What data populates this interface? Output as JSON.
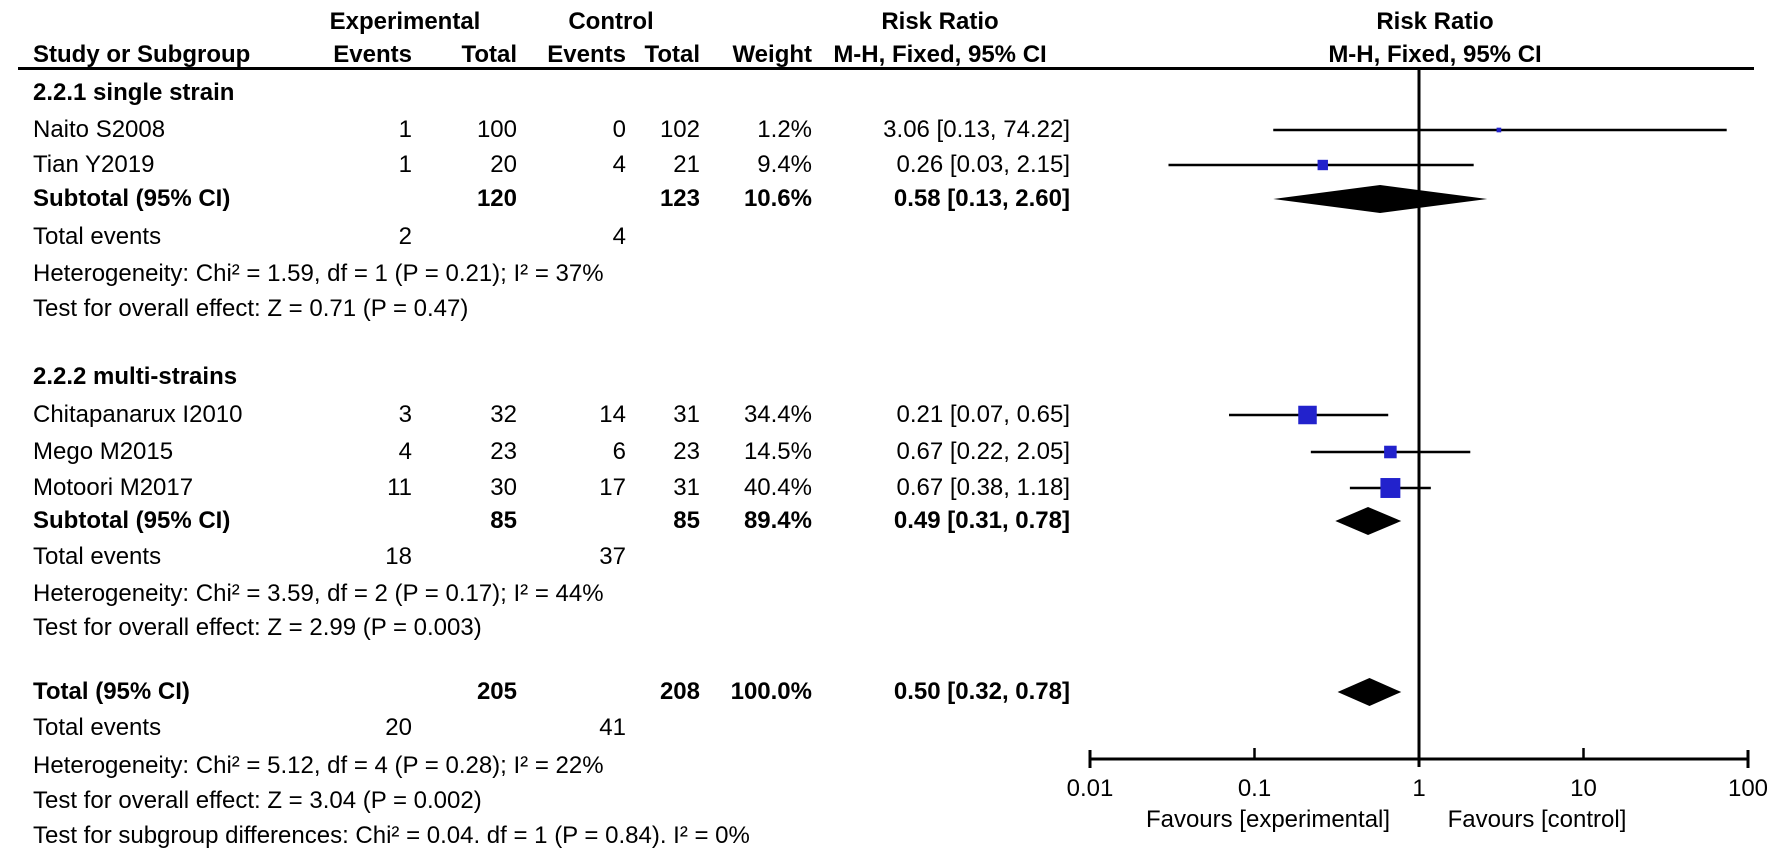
{
  "columns": {
    "study": "Study or Subgroup",
    "exp_group": "Experimental",
    "ctl_group": "Control",
    "events": "Events",
    "total": "Total",
    "weight": "Weight",
    "effect": "Risk Ratio",
    "method": "M-H, Fixed, 95% CI"
  },
  "rows": [
    {
      "kind": "heading",
      "text": "2.2.1 single strain"
    },
    {
      "kind": "study",
      "study": "Naito S2008",
      "exp_events": "1",
      "exp_total": "100",
      "ctl_events": "0",
      "ctl_total": "102",
      "weight": "1.2%",
      "estimate": "3.06 [0.13, 74.22]",
      "rr": 3.06,
      "ci_low": 0.13,
      "ci_high": 74.22,
      "weight_pct": 1.2
    },
    {
      "kind": "study",
      "study": "Tian Y2019",
      "exp_events": "1",
      "exp_total": "20",
      "ctl_events": "4",
      "ctl_total": "21",
      "weight": "9.4%",
      "estimate": "0.26 [0.03, 2.15]",
      "rr": 0.26,
      "ci_low": 0.03,
      "ci_high": 2.15,
      "weight_pct": 9.4
    },
    {
      "kind": "subtotal",
      "study": "Subtotal (95% CI)",
      "exp_total": "120",
      "ctl_total": "123",
      "weight": "10.6%",
      "estimate": "0.58 [0.13, 2.60]",
      "rr": 0.58,
      "ci_low": 0.13,
      "ci_high": 2.6
    },
    {
      "kind": "events",
      "study": "Total events",
      "exp_events": "2",
      "ctl_events": "4"
    },
    {
      "kind": "note",
      "text": "Heterogeneity: Chi² = 1.59, df = 1 (P = 0.21); I² = 37%"
    },
    {
      "kind": "note",
      "text": "Test for overall effect: Z = 0.71 (P = 0.47)"
    },
    {
      "kind": "heading",
      "text": "2.2.2 multi-strains"
    },
    {
      "kind": "study",
      "study": "Chitapanarux I2010",
      "exp_events": "3",
      "exp_total": "32",
      "ctl_events": "14",
      "ctl_total": "31",
      "weight": "34.4%",
      "estimate": "0.21 [0.07, 0.65]",
      "rr": 0.21,
      "ci_low": 0.07,
      "ci_high": 0.65,
      "weight_pct": 34.4
    },
    {
      "kind": "study",
      "study": "Mego M2015",
      "exp_events": "4",
      "exp_total": "23",
      "ctl_events": "6",
      "ctl_total": "23",
      "weight": "14.5%",
      "estimate": "0.67 [0.22, 2.05]",
      "rr": 0.67,
      "ci_low": 0.22,
      "ci_high": 2.05,
      "weight_pct": 14.5
    },
    {
      "kind": "study",
      "study": "Motoori M2017",
      "exp_events": "11",
      "exp_total": "30",
      "ctl_events": "17",
      "ctl_total": "31",
      "weight": "40.4%",
      "estimate": "0.67 [0.38, 1.18]",
      "rr": 0.67,
      "ci_low": 0.38,
      "ci_high": 1.18,
      "weight_pct": 40.4
    },
    {
      "kind": "subtotal",
      "study": "Subtotal (95% CI)",
      "exp_total": "85",
      "ctl_total": "85",
      "weight": "89.4%",
      "estimate": "0.49 [0.31, 0.78]",
      "rr": 0.49,
      "ci_low": 0.31,
      "ci_high": 0.78
    },
    {
      "kind": "events",
      "study": "Total events",
      "exp_events": "18",
      "ctl_events": "37"
    },
    {
      "kind": "note",
      "text": "Heterogeneity: Chi² = 3.59, df = 2 (P = 0.17); I² = 44%"
    },
    {
      "kind": "note",
      "text": "Test for overall effect: Z = 2.99 (P = 0.003)"
    },
    {
      "kind": "total",
      "study": "Total (95% CI)",
      "exp_total": "205",
      "ctl_total": "208",
      "weight": "100.0%",
      "estimate": "0.50 [0.32, 0.78]",
      "rr": 0.5,
      "ci_low": 0.32,
      "ci_high": 0.78
    },
    {
      "kind": "events",
      "study": "Total events",
      "exp_events": "20",
      "ctl_events": "41"
    },
    {
      "kind": "note",
      "text": "Heterogeneity: Chi² = 5.12, df = 4 (P = 0.28); I² = 22%"
    },
    {
      "kind": "note",
      "text": "Test for overall effect: Z = 3.04 (P = 0.002)"
    },
    {
      "kind": "note",
      "text": "Test for subgroup differences: Chi² = 0.04. df = 1 (P = 0.84). I² = 0%"
    }
  ],
  "axis": {
    "ticks": [
      {
        "label": "0.01",
        "value": 0.01
      },
      {
        "label": "0.1",
        "value": 0.1
      },
      {
        "label": "1",
        "value": 1
      },
      {
        "label": "10",
        "value": 10
      },
      {
        "label": "100",
        "value": 100
      }
    ],
    "favours_left": "Favours [experimental]",
    "favours_right": "Favours [control]"
  },
  "colors": {
    "marker_blue": "#2222CC",
    "line_black": "#000000"
  },
  "chart_data": {
    "type": "scatter",
    "subtype": "forest-plot",
    "title": "Risk Ratio, M-H, Fixed, 95% CI",
    "x_scale": "log10",
    "x_range": [
      0.01,
      100
    ],
    "x_ticks": [
      0.01,
      0.1,
      1,
      10,
      100
    ],
    "null_line": 1,
    "xlabel_left": "Favours [experimental]",
    "xlabel_right": "Favours [control]",
    "groups": [
      {
        "name": "2.2.1 single strain",
        "studies": [
          {
            "name": "Naito S2008",
            "rr": 3.06,
            "ci": [
              0.13,
              74.22
            ],
            "weight_pct": 1.2
          },
          {
            "name": "Tian Y2019",
            "rr": 0.26,
            "ci": [
              0.03,
              2.15
            ],
            "weight_pct": 9.4
          }
        ],
        "pooled": {
          "rr": 0.58,
          "ci": [
            0.13,
            2.6
          ],
          "weight_pct": 10.6
        },
        "total_events": {
          "experimental": 2,
          "control": 4
        },
        "heterogeneity": "Chi² = 1.59, df = 1 (P = 0.21); I² = 37%",
        "overall_effect": "Z = 0.71 (P = 0.47)"
      },
      {
        "name": "2.2.2 multi-strains",
        "studies": [
          {
            "name": "Chitapanarux I2010",
            "rr": 0.21,
            "ci": [
              0.07,
              0.65
            ],
            "weight_pct": 34.4
          },
          {
            "name": "Mego M2015",
            "rr": 0.67,
            "ci": [
              0.22,
              2.05
            ],
            "weight_pct": 14.5
          },
          {
            "name": "Motoori M2017",
            "rr": 0.67,
            "ci": [
              0.38,
              1.18
            ],
            "weight_pct": 40.4
          }
        ],
        "pooled": {
          "rr": 0.49,
          "ci": [
            0.31,
            0.78
          ],
          "weight_pct": 89.4
        },
        "total_events": {
          "experimental": 18,
          "control": 37
        },
        "heterogeneity": "Chi² = 3.59, df = 2 (P = 0.17); I² = 44%",
        "overall_effect": "Z = 2.99 (P = 0.003)"
      }
    ],
    "overall": {
      "rr": 0.5,
      "ci": [
        0.32,
        0.78
      ],
      "weight_pct": 100.0,
      "total_events": {
        "experimental": 20,
        "control": 41
      },
      "heterogeneity": "Chi² = 5.12, df = 4 (P = 0.28); I² = 22%",
      "overall_effect": "Z = 3.04 (P = 0.002)",
      "subgroup_differences": "Chi² = 0.04. df = 1 (P = 0.84). I² = 0%"
    }
  }
}
